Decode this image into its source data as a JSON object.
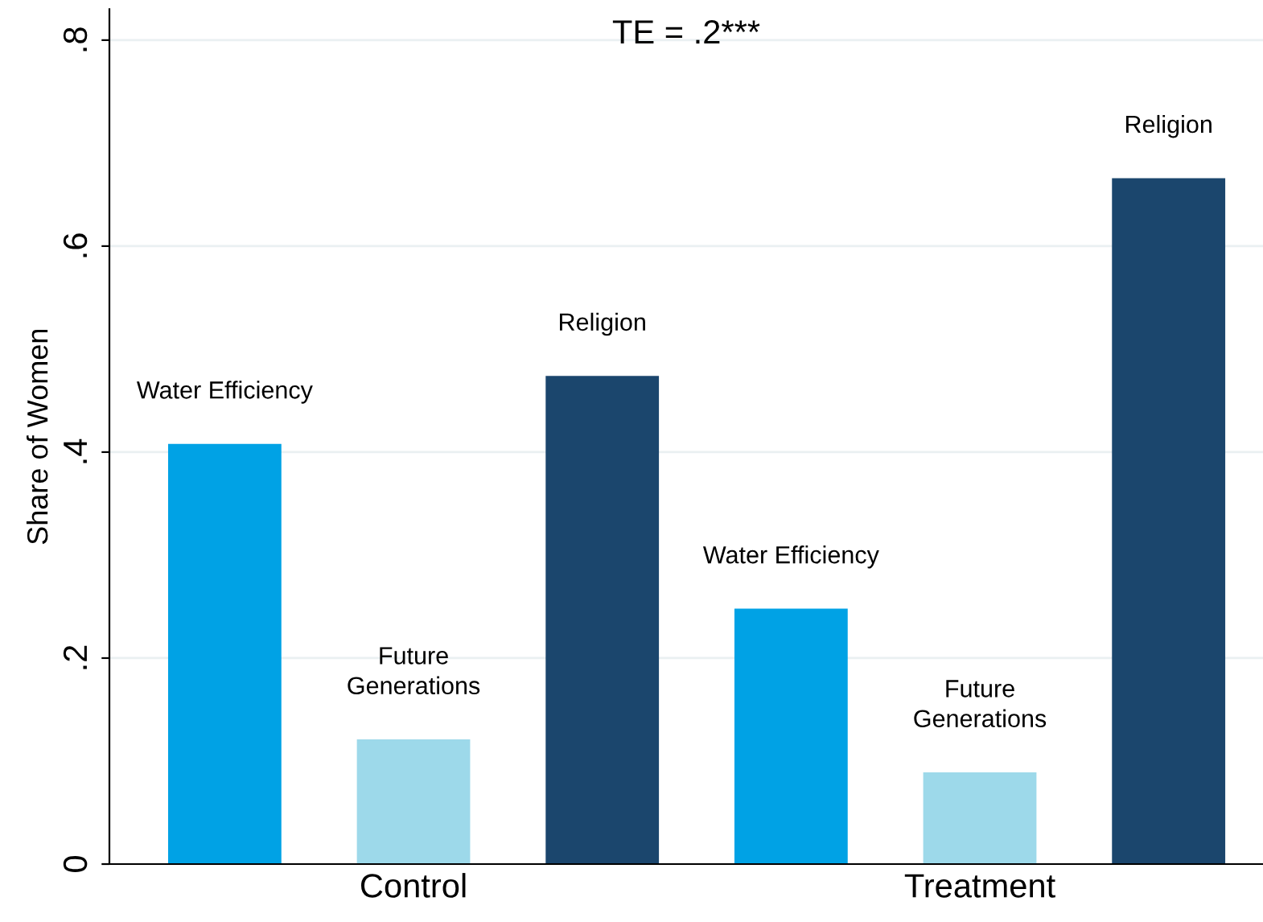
{
  "chart_data": {
    "type": "bar",
    "ylabel": "Share of Women",
    "categories": [
      "Control",
      "Treatment"
    ],
    "series": [
      {
        "name": "Water Efficiency",
        "color": "#00a2e5",
        "values": [
          0.408,
          0.248
        ]
      },
      {
        "name": "Future\nGenerations",
        "color": "#9dd9ea",
        "values": [
          0.121,
          0.089
        ]
      },
      {
        "name": "Religion",
        "color": "#1b466d",
        "values": [
          0.474,
          0.666
        ]
      }
    ],
    "ylim": [
      0,
      0.83
    ],
    "yticks": [
      {
        "value": 0,
        "label": "0"
      },
      {
        "value": 0.2,
        "label": ".2"
      },
      {
        "value": 0.4,
        "label": ".4"
      },
      {
        "value": 0.6,
        "label": ".6"
      },
      {
        "value": 0.8,
        "label": ".8"
      }
    ],
    "grid": "y",
    "annotations": [
      "TE = .2***"
    ]
  }
}
